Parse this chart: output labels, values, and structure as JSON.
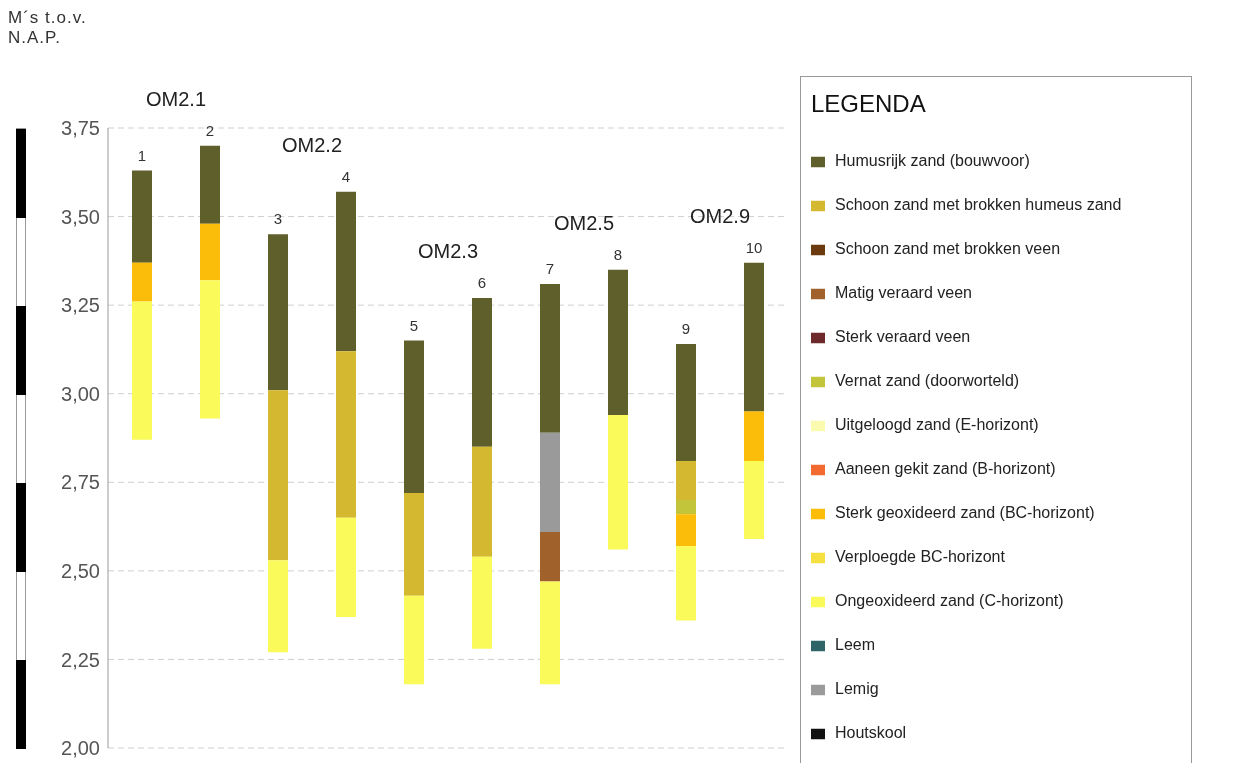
{
  "chart_data": {
    "type": "bar",
    "ylabel": "M´s t.o.v. N.A.P.",
    "legend_title": "LEGENDA",
    "legend": "right",
    "grid": "y",
    "categories": [
      "1",
      "2",
      "3",
      "4",
      "5",
      "6",
      "7",
      "8",
      "9",
      "10"
    ],
    "ylim": [
      2.0,
      3.75
    ],
    "yticks": [
      {
        "value": 2.0,
        "label": "2,00"
      },
      {
        "value": 2.25,
        "label": "2,25"
      },
      {
        "value": 2.5,
        "label": "2,50"
      },
      {
        "value": 2.75,
        "label": "2,75"
      },
      {
        "value": 3.0,
        "label": "3,00"
      },
      {
        "value": 3.25,
        "label": "3,25"
      },
      {
        "value": 3.5,
        "label": "3,50"
      },
      {
        "value": 3.75,
        "label": "3,75"
      }
    ],
    "annotations": [
      "OM2.1",
      "OM2.2",
      "OM2.3",
      "OM2.5",
      "OM2.9"
    ],
    "series": [
      {
        "name": "Humusrijk zand (bouwvoor)",
        "color": "#5e5f2a",
        "base": [
          3.37,
          3.48,
          3.01,
          3.12,
          2.72,
          2.85,
          2.89,
          2.94,
          2.81,
          2.95
        ],
        "values": [
          0.26,
          0.22,
          0.44,
          0.45,
          0.43,
          0.42,
          0.42,
          0.41,
          0.33,
          0.42
        ]
      },
      {
        "name": "Schoon zand met brokken humeus zand",
        "color": "#d4b830",
        "base": [
          null,
          null,
          2.53,
          2.65,
          2.43,
          2.54,
          null,
          null,
          2.7,
          null
        ],
        "values": [
          null,
          null,
          0.48,
          0.47,
          0.29,
          0.31,
          null,
          null,
          0.11,
          null
        ]
      },
      {
        "name": "Schoon zand met brokken veen",
        "color": "#6b3a0e",
        "values": [
          null,
          null,
          null,
          null,
          null,
          null,
          null,
          null,
          null,
          null
        ]
      },
      {
        "name": "Matig  veraard veen",
        "color": "#a0622a",
        "base": [
          null,
          null,
          null,
          null,
          null,
          null,
          2.47,
          null,
          null,
          null
        ],
        "values": [
          null,
          null,
          null,
          null,
          null,
          null,
          0.14,
          null,
          null,
          null
        ]
      },
      {
        "name": "Sterk veraard veen",
        "color": "#6e2a2a",
        "values": [
          null,
          null,
          null,
          null,
          null,
          null,
          null,
          null,
          null,
          null
        ]
      },
      {
        "name": "Vernat zand (doorworteld)",
        "color": "#c2c43a",
        "base": [
          null,
          null,
          null,
          null,
          null,
          null,
          null,
          null,
          2.66,
          null
        ],
        "values": [
          null,
          null,
          null,
          null,
          null,
          null,
          null,
          null,
          0.04,
          null
        ]
      },
      {
        "name": "Uitgeloogd zand (E-horizont)",
        "color": "#fbfbb0",
        "values": [
          null,
          null,
          null,
          null,
          null,
          null,
          null,
          null,
          null,
          null
        ]
      },
      {
        "name": "Aaneen gekit zand (B-horizont)",
        "color": "#f26a30",
        "values": [
          null,
          null,
          null,
          null,
          null,
          null,
          null,
          null,
          null,
          null
        ]
      },
      {
        "name": "Sterk geoxideerd zand (BC-horizont)",
        "color": "#fbbd0a",
        "base": [
          3.26,
          3.32,
          null,
          null,
          null,
          null,
          null,
          null,
          2.57,
          2.81
        ],
        "values": [
          0.11,
          0.16,
          null,
          null,
          null,
          null,
          null,
          null,
          0.09,
          0.14
        ]
      },
      {
        "name": "Verploegde BC-horizont",
        "color": "#f6e040",
        "values": [
          null,
          null,
          null,
          null,
          null,
          null,
          null,
          null,
          null,
          null
        ]
      },
      {
        "name": "Ongeoxideerd zand (C-horizont)",
        "color": "#fafa5a",
        "base": [
          2.87,
          2.93,
          2.27,
          2.37,
          2.18,
          2.28,
          2.18,
          2.56,
          2.36,
          2.59
        ],
        "values": [
          0.39,
          0.39,
          0.26,
          0.28,
          0.25,
          0.26,
          0.29,
          0.38,
          0.21,
          0.22
        ]
      },
      {
        "name": "Leem",
        "color": "#2f6468",
        "values": [
          null,
          null,
          null,
          null,
          null,
          null,
          null,
          null,
          null,
          null
        ]
      },
      {
        "name": "Lemig",
        "color": "#9a9a9a",
        "base": [
          null,
          null,
          null,
          null,
          null,
          null,
          2.61,
          null,
          null,
          null
        ],
        "values": [
          null,
          null,
          null,
          null,
          null,
          null,
          0.28,
          null,
          null,
          null
        ]
      },
      {
        "name": "Houtskool",
        "color": "#111111",
        "values": [
          null,
          null,
          null,
          null,
          null,
          null,
          null,
          null,
          null,
          null
        ]
      }
    ]
  }
}
